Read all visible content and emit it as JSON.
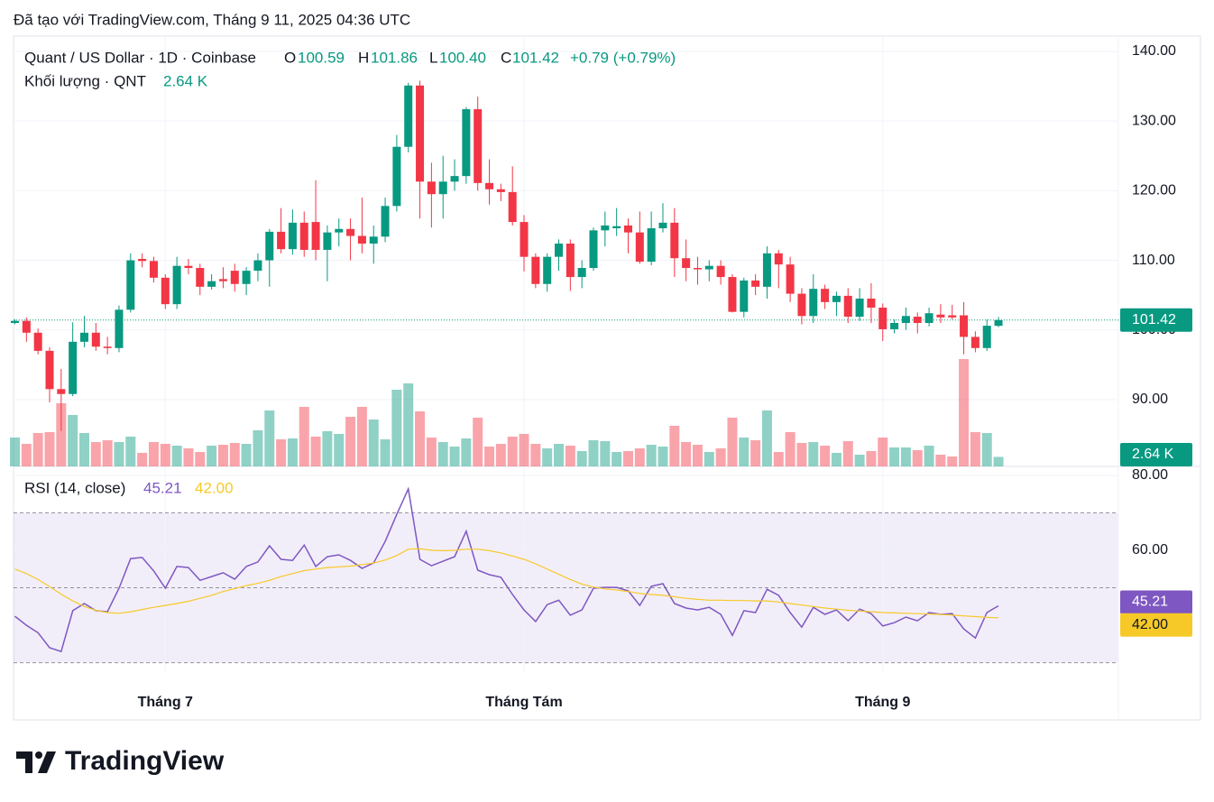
{
  "header": "Đã tạo với TradingView.com, Tháng 9 11, 2025 04:36 UTC",
  "footer": "TradingView",
  "chart_data": {
    "type": "candlestick",
    "title": "Quant / US Dollar · 1D · Coinbase",
    "legend": [
      {
        "label": "O",
        "value": "100.59"
      },
      {
        "label": "H",
        "value": "101.86"
      },
      {
        "label": "L",
        "value": "100.40"
      },
      {
        "label": "C",
        "value": "101.42"
      }
    ],
    "change": "+0.79 (+0.79%)",
    "categories": [
      null,
      null,
      null,
      null,
      null,
      null,
      null,
      null,
      null,
      null,
      null,
      null,
      null,
      "Tháng 7",
      null,
      null,
      null,
      null,
      null,
      null,
      null,
      null,
      null,
      null,
      null,
      null,
      null,
      null,
      null,
      null,
      null,
      null,
      null,
      null,
      null,
      null,
      null,
      null,
      null,
      null,
      null,
      null,
      null,
      null,
      "Tháng Tám",
      null,
      null,
      null,
      null,
      null,
      null,
      null,
      null,
      null,
      null,
      null,
      null,
      null,
      null,
      null,
      null,
      null,
      null,
      null,
      null,
      null,
      null,
      null,
      null,
      null,
      null,
      null,
      null,
      null,
      null,
      "Tháng 9",
      null,
      null,
      null,
      null,
      null,
      null,
      null,
      null,
      null,
      null
    ],
    "open": [
      101.0,
      101.3,
      99.6,
      97.0,
      91.5,
      90.8,
      98.3,
      99.6,
      97.6,
      97.4,
      102.9,
      110.2,
      109.9,
      107.5,
      103.7,
      109.2,
      108.9,
      106.2,
      107.3,
      108.5,
      106.6,
      108.5,
      110.0,
      114.1,
      111.6,
      115.4,
      115.5,
      111.5,
      114.0,
      114.5,
      113.5,
      112.4,
      113.4,
      117.8,
      126.3,
      135.1,
      121.3,
      119.5,
      121.3,
      122.1,
      131.7,
      121.1,
      120.2,
      119.8,
      115.5,
      110.5,
      106.6,
      110.5,
      112.4,
      107.6,
      108.9,
      114.3,
      114.6,
      115.0,
      114.0,
      109.8,
      114.6,
      115.4,
      110.3,
      108.9,
      108.7,
      109.2,
      107.6,
      102.6,
      107.1,
      106.2,
      111.0,
      109.4,
      105.2,
      102.0,
      105.9,
      104.0,
      104.9,
      101.9,
      104.5,
      103.2,
      100.1,
      101.0,
      101.9,
      101.0,
      102.2,
      102.1,
      102.1,
      99.0,
      97.4,
      100.59
    ],
    "high": [
      101.5,
      101.8,
      100.2,
      97.5,
      94.4,
      101.1,
      102.0,
      101.0,
      99.0,
      103.5,
      111.0,
      111.0,
      110.5,
      108.0,
      110.5,
      110.2,
      109.5,
      108.0,
      109.0,
      109.5,
      109.0,
      111.0,
      114.5,
      117.5,
      117.3,
      117.0,
      121.5,
      115.0,
      116.0,
      116.0,
      119.0,
      115.0,
      119.0,
      128.0,
      135.5,
      135.8,
      124.0,
      125.0,
      124.5,
      132.0,
      133.5,
      124.5,
      121.0,
      123.5,
      116.5,
      111.0,
      111.0,
      113.0,
      113.0,
      110.0,
      114.7,
      117.0,
      117.5,
      116.0,
      117.0,
      117.0,
      118.2,
      117.5,
      113.0,
      110.5,
      110.0,
      110.0,
      108.0,
      107.5,
      108.0,
      112.0,
      111.5,
      110.5,
      106.0,
      108.0,
      106.5,
      105.5,
      106.0,
      106.0,
      106.7,
      103.8,
      101.5,
      103.2,
      102.5,
      103.2,
      103.7,
      103.6,
      104.0,
      99.8,
      101.5,
      101.86
    ],
    "low": [
      100.8,
      98.3,
      96.5,
      89.6,
      85.5,
      90.5,
      97.5,
      97.0,
      96.5,
      96.8,
      102.5,
      109.0,
      106.8,
      103.0,
      103.0,
      108.0,
      105.0,
      105.8,
      106.0,
      105.5,
      105.0,
      107.0,
      106.2,
      111.0,
      110.8,
      110.5,
      110.0,
      107.0,
      112.0,
      110.0,
      111.0,
      109.5,
      112.6,
      117.0,
      125.5,
      116.0,
      114.7,
      116.0,
      120.0,
      121.0,
      120.0,
      118.0,
      118.5,
      115.0,
      108.4,
      106.0,
      105.5,
      108.5,
      105.6,
      106.0,
      108.5,
      112.0,
      113.5,
      111.0,
      109.5,
      109.3,
      114.0,
      107.6,
      107.0,
      106.5,
      107.0,
      106.5,
      102.5,
      101.8,
      105.0,
      104.5,
      106.0,
      104.0,
      100.8,
      101.0,
      103.0,
      102.0,
      101.0,
      101.3,
      101.0,
      98.4,
      99.5,
      100.0,
      99.5,
      100.5,
      101.0,
      101.5,
      96.5,
      96.8,
      97.0,
      100.4
    ],
    "close": [
      101.3,
      99.6,
      97.0,
      91.5,
      90.8,
      98.3,
      99.6,
      97.6,
      97.4,
      102.9,
      110.0,
      109.9,
      107.5,
      103.7,
      109.2,
      108.9,
      106.2,
      107.0,
      107.0,
      106.6,
      108.5,
      110.0,
      114.1,
      111.6,
      115.4,
      111.5,
      111.5,
      114.0,
      114.5,
      113.5,
      112.4,
      113.4,
      117.8,
      126.3,
      135.1,
      121.3,
      119.5,
      121.3,
      122.1,
      131.7,
      121.1,
      120.2,
      119.8,
      115.5,
      110.5,
      106.6,
      110.5,
      112.4,
      107.6,
      108.9,
      114.3,
      115.0,
      114.9,
      114.0,
      109.8,
      114.6,
      115.4,
      110.3,
      108.9,
      108.7,
      109.2,
      107.6,
      102.6,
      107.1,
      106.2,
      111.0,
      109.4,
      105.2,
      102.0,
      105.9,
      104.0,
      104.9,
      101.9,
      104.5,
      103.2,
      100.1,
      101.0,
      102.0,
      101.0,
      102.4,
      101.8,
      101.8,
      99.0,
      97.4,
      100.6,
      101.42
    ],
    "up_color": "#089981",
    "down_color": "#f23645",
    "ylim": [
      80.4,
      142.2
    ],
    "yticks": [
      {
        "value": 90,
        "label": "90.00"
      },
      {
        "value": 100,
        "label": "100.00"
      },
      {
        "value": 110,
        "label": "110.00"
      },
      {
        "value": 120,
        "label": "120.00"
      },
      {
        "value": 130,
        "label": "130.00"
      },
      {
        "value": 140,
        "label": "140.00"
      }
    ],
    "grid": true,
    "last_price_label": "101.42",
    "volume": {
      "name": "Khối lượng · QNT",
      "last_label": "2.64 K",
      "ylim": [
        0,
        119.25
      ],
      "values": [
        8,
        6.25,
        9.25,
        9.5,
        17.5,
        14.25,
        9.25,
        6.75,
        7.25,
        6.75,
        8.25,
        3.75,
        6.75,
        6.25,
        5.75,
        5,
        4,
        5.75,
        6,
        6.5,
        6.25,
        10,
        15.5,
        7.5,
        7.75,
        16.5,
        8.25,
        9.75,
        9,
        13.75,
        16.5,
        13,
        7.5,
        21.25,
        23,
        15.25,
        8,
        6.75,
        5.5,
        7.75,
        13.5,
        5.5,
        6.25,
        8.25,
        9,
        6.25,
        5,
        6.25,
        5.75,
        4.25,
        7.25,
        7,
        4,
        4.25,
        5,
        6,
        5.5,
        11.25,
        6.75,
        6,
        4,
        5,
        13.5,
        8,
        7.25,
        15.5,
        4,
        9.5,
        6.5,
        6.75,
        5.75,
        3.75,
        7,
        3.25,
        4.25,
        8,
        5.25,
        5.25,
        4.5,
        5.75,
        3.25,
        2.75,
        29.75,
        9.5,
        9.25,
        2.64
      ]
    },
    "rsi": {
      "name": "RSI (14, close)",
      "ylim": [
        27.5,
        82.4
      ],
      "yticks": [
        {
          "value": 80,
          "label": "80.00"
        },
        {
          "value": 60,
          "label": "60.00"
        }
      ],
      "bands": [
        70,
        50,
        30
      ],
      "band_color": "#7e57c2",
      "series": [
        {
          "color": "#7e57c2",
          "value_label": "45.21",
          "values": [
            42.4,
            40,
            38,
            34,
            33,
            43.9,
            45.8,
            43.9,
            43.6,
            49.9,
            57.8,
            58.1,
            54.5,
            49.9,
            55.7,
            55.4,
            52,
            53,
            54,
            52.3,
            55.7,
            56.9,
            61.2,
            57.6,
            57.3,
            61.4,
            55.7,
            58.3,
            58.8,
            57.3,
            55.2,
            56.6,
            62.4,
            69.6,
            76.4,
            57.6,
            55.9,
            57.1,
            58.3,
            65.1,
            54.7,
            53.5,
            52.8,
            48.2,
            44.1,
            41,
            45.5,
            46.7,
            42.7,
            44.1,
            49.9,
            50.1,
            50.1,
            49.2,
            45.3,
            50.4,
            51.1,
            45.8,
            44.6,
            44.1,
            44.8,
            42.9,
            37.3,
            43.9,
            43.4,
            49.6,
            48,
            43.4,
            39.5,
            44.8,
            42.9,
            44.1,
            41.2,
            44.3,
            43.1,
            39.8,
            40.7,
            42.2,
            41.2,
            43.4,
            42.9,
            43.1,
            39,
            36.6,
            43.4,
            45.21
          ]
        },
        {
          "color": "#f7c928",
          "value_label": "42.00",
          "values": [
            55.0,
            53.8,
            52.2,
            50.3,
            48.3,
            46.5,
            45,
            44,
            43.4,
            43.2,
            43.6,
            44.2,
            44.8,
            45.3,
            45.8,
            46.4,
            47.2,
            48,
            49,
            49.8,
            50.6,
            51.2,
            52,
            53,
            53.8,
            54.6,
            55,
            55.4,
            55.6,
            55.8,
            56.2,
            56.6,
            57.4,
            58.6,
            60.3,
            60.4,
            60,
            59.9,
            60,
            60.3,
            60.3,
            59.9,
            59.3,
            58.5,
            57.6,
            56.4,
            55,
            53.6,
            52.2,
            51,
            50.2,
            49.7,
            49.4,
            49,
            48.5,
            48.2,
            48,
            47.6,
            47.2,
            46.9,
            46.7,
            46.7,
            46.6,
            46.6,
            46.5,
            46.5,
            46.2,
            45.8,
            45.4,
            45,
            44.6,
            44.3,
            44,
            43.8,
            43.6,
            43.4,
            43.3,
            43.2,
            43.1,
            43,
            42.9,
            42.7,
            42.5,
            42.3,
            42.1,
            42.0
          ]
        }
      ]
    }
  }
}
